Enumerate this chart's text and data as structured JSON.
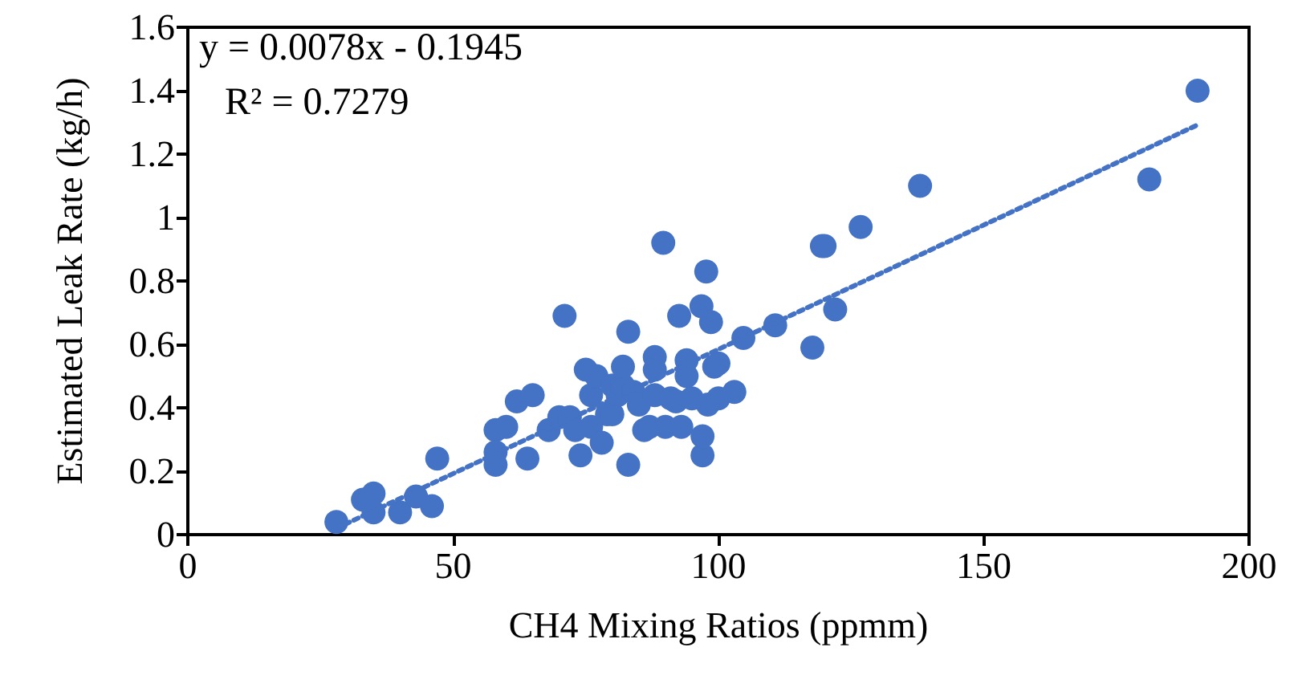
{
  "chart_data": {
    "type": "scatter",
    "xlabel": "CH4 Mixing Ratios (ppmm)",
    "ylabel": "Estimated Leak Rate (kg/h)",
    "xlim": [
      0,
      200
    ],
    "xticks": [
      0,
      50,
      100,
      150,
      200
    ],
    "ylim": [
      0,
      1.6
    ],
    "yticks": [
      0,
      0.2,
      0.4,
      0.6,
      0.8,
      1,
      1.2,
      1.4,
      1.6
    ],
    "marker": "circle",
    "annotations": [
      "y = 0.0078x - 0.1945",
      "R² = 0.7279"
    ],
    "series": [
      {
        "color": "#4472c4",
        "x": [
          28,
          33,
          35,
          35,
          40,
          43,
          46,
          47,
          58,
          58,
          58,
          60,
          62,
          64,
          65,
          68,
          70,
          71,
          72,
          73,
          74,
          75,
          76,
          76,
          77,
          78,
          79,
          80,
          80,
          81,
          82,
          82,
          83,
          83,
          84,
          85,
          86,
          87,
          88,
          88,
          88,
          89.6,
          90,
          91,
          92,
          92.6,
          93,
          94,
          94,
          95,
          96.8,
          97.7,
          97,
          97,
          98,
          98.6,
          99.2,
          100,
          100,
          103,
          104.7,
          110.7,
          117.7,
          119.5,
          120,
          122,
          126.8,
          138,
          181.2,
          190.3
        ],
        "values": [
          0.04,
          0.11,
          0.13,
          0.07,
          0.07,
          0.12,
          0.09,
          0.24,
          0.33,
          0.26,
          0.22,
          0.34,
          0.42,
          0.24,
          0.44,
          0.33,
          0.37,
          0.69,
          0.37,
          0.33,
          0.25,
          0.52,
          0.34,
          0.44,
          0.5,
          0.29,
          0.38,
          0.47,
          0.38,
          0.44,
          0.47,
          0.53,
          0.64,
          0.22,
          0.45,
          0.41,
          0.33,
          0.34,
          0.56,
          0.52,
          0.44,
          0.92,
          0.34,
          0.43,
          0.42,
          0.69,
          0.34,
          0.55,
          0.5,
          0.43,
          0.72,
          0.83,
          0.25,
          0.31,
          0.41,
          0.67,
          0.53,
          0.54,
          0.43,
          0.45,
          0.62,
          0.66,
          0.59,
          0.91,
          0.91,
          0.71,
          0.97,
          1.1,
          1.12,
          1.4
        ]
      },
      {
        "type": "line",
        "color": "#4472c4",
        "line_style": "dotted",
        "marker": "none",
        "x": [
          28,
          190
        ],
        "values": [
          0.02,
          1.29
        ]
      }
    ]
  }
}
